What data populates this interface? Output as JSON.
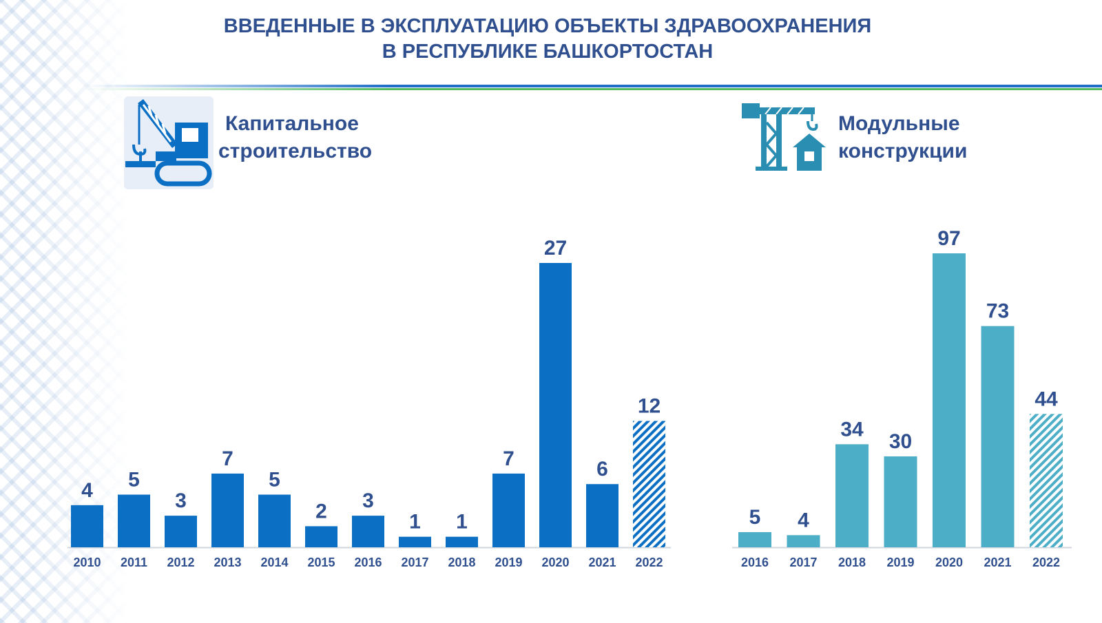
{
  "title": {
    "line1": "ВВЕДЕННЫЕ В ЭКСПЛУАТАЦИЮ ОБЪЕКТЫ ЗДРАВООХРАНЕНИЯ",
    "line2": "В РЕСПУБЛИКЕ БАШКОРТОСТАН"
  },
  "colors": {
    "title": "#2f4f8f",
    "capital_bar": "#0b6fc4",
    "modular_bar": "#4daec8",
    "line_blue": "#1e6ec8",
    "line_green": "#50b95f"
  },
  "sections": {
    "capital": {
      "icon": "crawler-crane-icon",
      "line1": "Капитальное",
      "line2": "строительство"
    },
    "modular": {
      "icon": "tower-crane-house-icon",
      "line1": "Модульные",
      "line2": "конструкции"
    }
  },
  "chart_data": [
    {
      "type": "bar",
      "title": "Капитальное строительство",
      "categories": [
        "2010",
        "2011",
        "2012",
        "2013",
        "2014",
        "2015",
        "2016",
        "2017",
        "2018",
        "2019",
        "2020",
        "2021",
        "2022"
      ],
      "values": [
        4,
        5,
        3,
        7,
        5,
        2,
        3,
        1,
        1,
        7,
        27,
        6,
        12
      ],
      "hatched_categories": [
        "2022"
      ],
      "color": "#0b6fc4",
      "data_labels": true,
      "grid": false,
      "legend": "none",
      "ylim": [
        0,
        27
      ]
    },
    {
      "type": "bar",
      "title": "Модульные конструкции",
      "categories": [
        "2016",
        "2017",
        "2018",
        "2019",
        "2020",
        "2021",
        "2022"
      ],
      "values": [
        5,
        4,
        34,
        30,
        97,
        73,
        44
      ],
      "hatched_categories": [
        "2022"
      ],
      "color": "#4daec8",
      "data_labels": true,
      "grid": false,
      "legend": "none",
      "ylim": [
        0,
        97
      ]
    }
  ]
}
